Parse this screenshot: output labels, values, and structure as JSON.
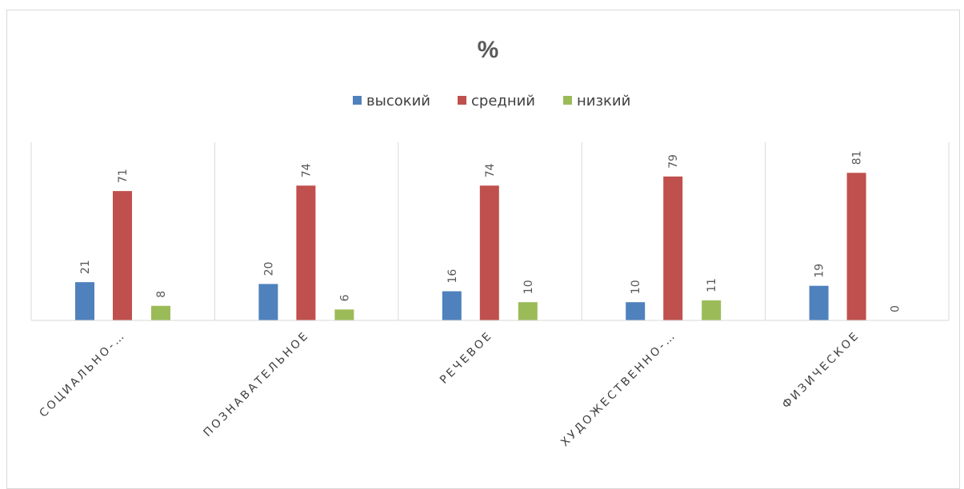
{
  "chart_data": {
    "type": "bar",
    "title": "%",
    "categories": [
      "СОЦИАЛЬНО-…",
      "ПОЗНАВАТЕЛЬНОЕ",
      "РЕЧЕВОЕ",
      "ХУДОЖЕСТВЕННО-…",
      "ФИЗИЧЕСКОЕ"
    ],
    "series": [
      {
        "name": "высокий",
        "color": "#4f81bd",
        "values": [
          21,
          20,
          16,
          10,
          19
        ]
      },
      {
        "name": "средний",
        "color": "#c0504d",
        "values": [
          71,
          74,
          74,
          79,
          81
        ]
      },
      {
        "name": "низкий",
        "color": "#9bbb59",
        "values": [
          8,
          6,
          10,
          11,
          0
        ]
      }
    ],
    "ylim": [
      0,
      90
    ],
    "legend": "top",
    "grid": "vertical category separators",
    "xlabel": "",
    "ylabel": ""
  }
}
